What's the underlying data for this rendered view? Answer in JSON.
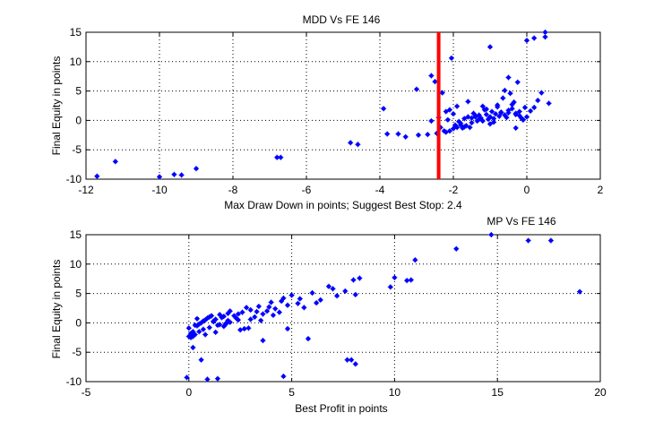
{
  "chart_data": [
    {
      "type": "scatter",
      "title": "MDD Vs FE  146",
      "xlabel": "Max Draw Down in points; Suggest Best Stop: 2.4",
      "ylabel": "Final Equity in points",
      "xlim": [
        -12,
        2
      ],
      "ylim": [
        -10,
        15
      ],
      "xticks": [
        -12,
        -10,
        -8,
        -6,
        -4,
        -2,
        0,
        2
      ],
      "yticks": [
        -10,
        -5,
        0,
        5,
        10,
        15
      ],
      "grid": true,
      "marker_color": "#0000ff",
      "stop_line": {
        "x": -2.4,
        "color": "#ff0000"
      },
      "x": [
        -11.7,
        -11.2,
        -10.0,
        -9.6,
        -9.4,
        -9.0,
        -6.8,
        -6.7,
        -4.8,
        -4.6,
        -3.9,
        -3.8,
        -3.5,
        -3.3,
        -3.0,
        -2.95,
        -2.7,
        -2.6,
        -2.5,
        -2.45,
        -2.4,
        -2.35,
        -2.3,
        -2.25,
        -2.2,
        -2.15,
        -2.1,
        -2.05,
        -2.0,
        -1.95,
        -1.9,
        -1.85,
        -1.8,
        -1.75,
        -1.7,
        -1.65,
        -1.6,
        -1.55,
        -1.5,
        -1.45,
        -1.4,
        -1.35,
        -1.3,
        -1.25,
        -1.2,
        -1.15,
        -1.1,
        -1.05,
        -1.0,
        -0.95,
        -0.9,
        -0.85,
        -0.8,
        -0.75,
        -0.7,
        -0.65,
        -0.6,
        -0.55,
        -0.5,
        -0.45,
        -0.4,
        -0.35,
        -0.3,
        -0.25,
        -0.2,
        -0.15,
        -0.1,
        -0.05,
        0.0,
        0.1,
        0.2,
        0.3,
        0.4,
        0.5,
        0.6,
        -2.1,
        -1.8,
        -1.5,
        -1.2,
        -0.9,
        -0.6,
        -0.3,
        -1.9,
        -1.6,
        -1.3,
        -1.0,
        -0.7,
        -0.4,
        -0.1,
        -1.7,
        -1.4,
        -1.1,
        -0.8,
        -0.5,
        -0.2,
        0.2,
        -2.6,
        -2.2,
        -1.0,
        -0.3,
        -2.0,
        0.0,
        0.5,
        -0.5
      ],
      "y": [
        -9.5,
        -7.0,
        -9.6,
        -9.2,
        -9.3,
        -8.2,
        -6.3,
        -6.3,
        -3.8,
        -4.1,
        2.0,
        -2.3,
        -2.3,
        -2.8,
        5.3,
        -2.5,
        -2.4,
        7.6,
        6.6,
        -2.2,
        0.5,
        -1.2,
        4.7,
        -1.8,
        -2.0,
        0.1,
        -1.8,
        10.6,
        -1.4,
        -0.8,
        -1.2,
        -0.2,
        -0.5,
        -1.3,
        0.3,
        -0.9,
        0.6,
        -1.2,
        -0.4,
        1.2,
        0.8,
        -0.1,
        0.9,
        0.4,
        2.4,
        1.8,
        1.0,
        0.2,
        0.6,
        1.5,
        -0.3,
        1.1,
        2.6,
        0.7,
        1.3,
        3.8,
        5.1,
        0.5,
        1.7,
        4.6,
        2.0,
        3.1,
        1.2,
        6.5,
        1.5,
        0.4,
        0.1,
        2.2,
        0.6,
        1.6,
        2.2,
        3.4,
        4.7,
        15.0,
        2.9,
        1.8,
        -0.8,
        0.4,
        -0.1,
        0.3,
        0.9,
        1.0,
        2.4,
        3.2,
        0.2,
        -0.6,
        1.4,
        2.7,
        0.1,
        -1.1,
        0.6,
        1.9,
        2.3,
        1.3,
        0.8,
        14.0,
        -0.1,
        1.5,
        12.5,
        -1.3,
        1.1,
        13.6,
        14.2,
        7.3
      ]
    },
    {
      "type": "scatter",
      "title": "MP Vs FE 146",
      "xlabel": "Best Profit in points",
      "ylabel": "Final Equity in points",
      "xlim": [
        -5,
        20
      ],
      "ylim": [
        -10,
        15
      ],
      "xticks": [
        -5,
        0,
        5,
        10,
        15,
        20
      ],
      "yticks": [
        -10,
        -5,
        0,
        5,
        10,
        15
      ],
      "grid": true,
      "marker_color": "#0000ff",
      "x": [
        -0.1,
        0.2,
        0.6,
        0.9,
        1.4,
        4.6,
        7.7,
        7.9,
        8.1,
        0.0,
        0.1,
        0.2,
        0.3,
        0.1,
        0.2,
        0.0,
        0.4,
        0.5,
        0.6,
        0.7,
        0.8,
        0.9,
        1.0,
        1.1,
        1.2,
        1.3,
        1.4,
        1.5,
        1.6,
        1.7,
        1.8,
        1.9,
        2.0,
        2.2,
        2.4,
        2.6,
        2.8,
        3.0,
        3.2,
        3.4,
        3.6,
        3.8,
        4.0,
        4.2,
        4.4,
        4.6,
        4.8,
        5.0,
        5.3,
        5.6,
        6.0,
        6.4,
        6.8,
        7.2,
        7.6,
        8.0,
        8.3,
        9.8,
        10.0,
        10.6,
        10.8,
        11.0,
        13.0,
        14.7,
        16.5,
        17.6,
        19.0,
        0.3,
        0.7,
        1.2,
        1.7,
        2.3,
        2.9,
        3.5,
        4.1,
        0.5,
        1.0,
        1.5,
        2.0,
        2.5,
        3.0,
        0.8,
        1.3,
        1.8,
        2.4,
        3.3,
        3.9,
        4.5,
        5.4,
        6.2,
        7.0,
        8.1,
        2.7,
        3.6,
        4.8,
        5.8,
        0.4,
        1.9
      ],
      "y": [
        -9.3,
        -4.2,
        -6.3,
        -9.6,
        -9.5,
        -9.1,
        -6.3,
        -6.3,
        -7.0,
        -2.3,
        -2.5,
        -2.3,
        -2.0,
        -1.8,
        -1.5,
        -0.9,
        -0.5,
        -0.2,
        0.0,
        0.3,
        0.5,
        0.8,
        1.0,
        1.2,
        0.2,
        0.6,
        -0.4,
        1.4,
        0.9,
        1.1,
        -0.2,
        1.6,
        2.0,
        1.2,
        0.5,
        1.8,
        2.6,
        2.2,
        1.0,
        2.8,
        1.5,
        2.0,
        3.5,
        2.4,
        1.8,
        4.2,
        3.0,
        4.7,
        3.3,
        2.6,
        5.1,
        3.9,
        6.2,
        4.6,
        5.4,
        7.3,
        7.6,
        6.1,
        7.7,
        7.2,
        7.3,
        10.7,
        12.6,
        15.0,
        14.0,
        14.0,
        5.3,
        -0.4,
        -1.1,
        0.3,
        -0.6,
        0.8,
        -0.9,
        0.4,
        1.3,
        -1.5,
        -0.8,
        -0.3,
        0.1,
        -1.2,
        0.6,
        -2.0,
        -1.6,
        -0.1,
        1.5,
        1.9,
        2.7,
        3.7,
        4.1,
        3.4,
        5.8,
        4.8,
        -1.0,
        -3.0,
        -1.0,
        -2.7,
        0.7,
        0.4
      ]
    }
  ]
}
